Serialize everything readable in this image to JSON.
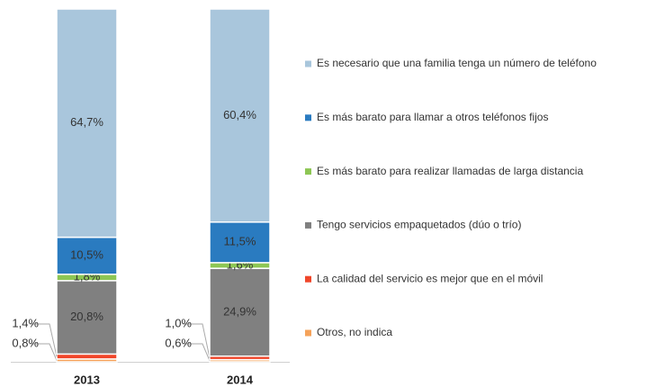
{
  "chart_data": {
    "type": "stacked_bar",
    "categories": [
      "2013",
      "2014"
    ],
    "series": [
      {
        "name": "Es necesario que una familia tenga un número de teléfono",
        "color": "#a9c6dc",
        "values": [
          64.7,
          60.4
        ],
        "value_labels": [
          "64,7%",
          "60,4%"
        ]
      },
      {
        "name": "Es más barato para llamar a otros teléfonos fijos",
        "color": "#2a7bc0",
        "values": [
          10.5,
          11.5
        ],
        "value_labels": [
          "10,5%",
          "11,5%"
        ]
      },
      {
        "name": "Es más barato para realizar llamadas de larga distancia",
        "color": "#8dc654",
        "values": [
          1.8,
          1.6
        ],
        "value_labels": [
          "1,8%",
          "1,6%"
        ]
      },
      {
        "name": "Tengo servicios empaquetados (dúo o trío)",
        "color": "#808080",
        "values": [
          20.8,
          24.9
        ],
        "value_labels": [
          "20,8%",
          "24,9%"
        ]
      },
      {
        "name": "La calidad del servicio es mejor que en el móvil",
        "color": "#f0462a",
        "values": [
          1.4,
          1.0
        ],
        "value_labels": [
          "1,4%",
          "1,0%"
        ]
      },
      {
        "name": "Otros, no indica",
        "color": "#f5a25a",
        "values": [
          0.8,
          0.6
        ],
        "value_labels": [
          "0,8%",
          "0,6%"
        ]
      }
    ]
  }
}
